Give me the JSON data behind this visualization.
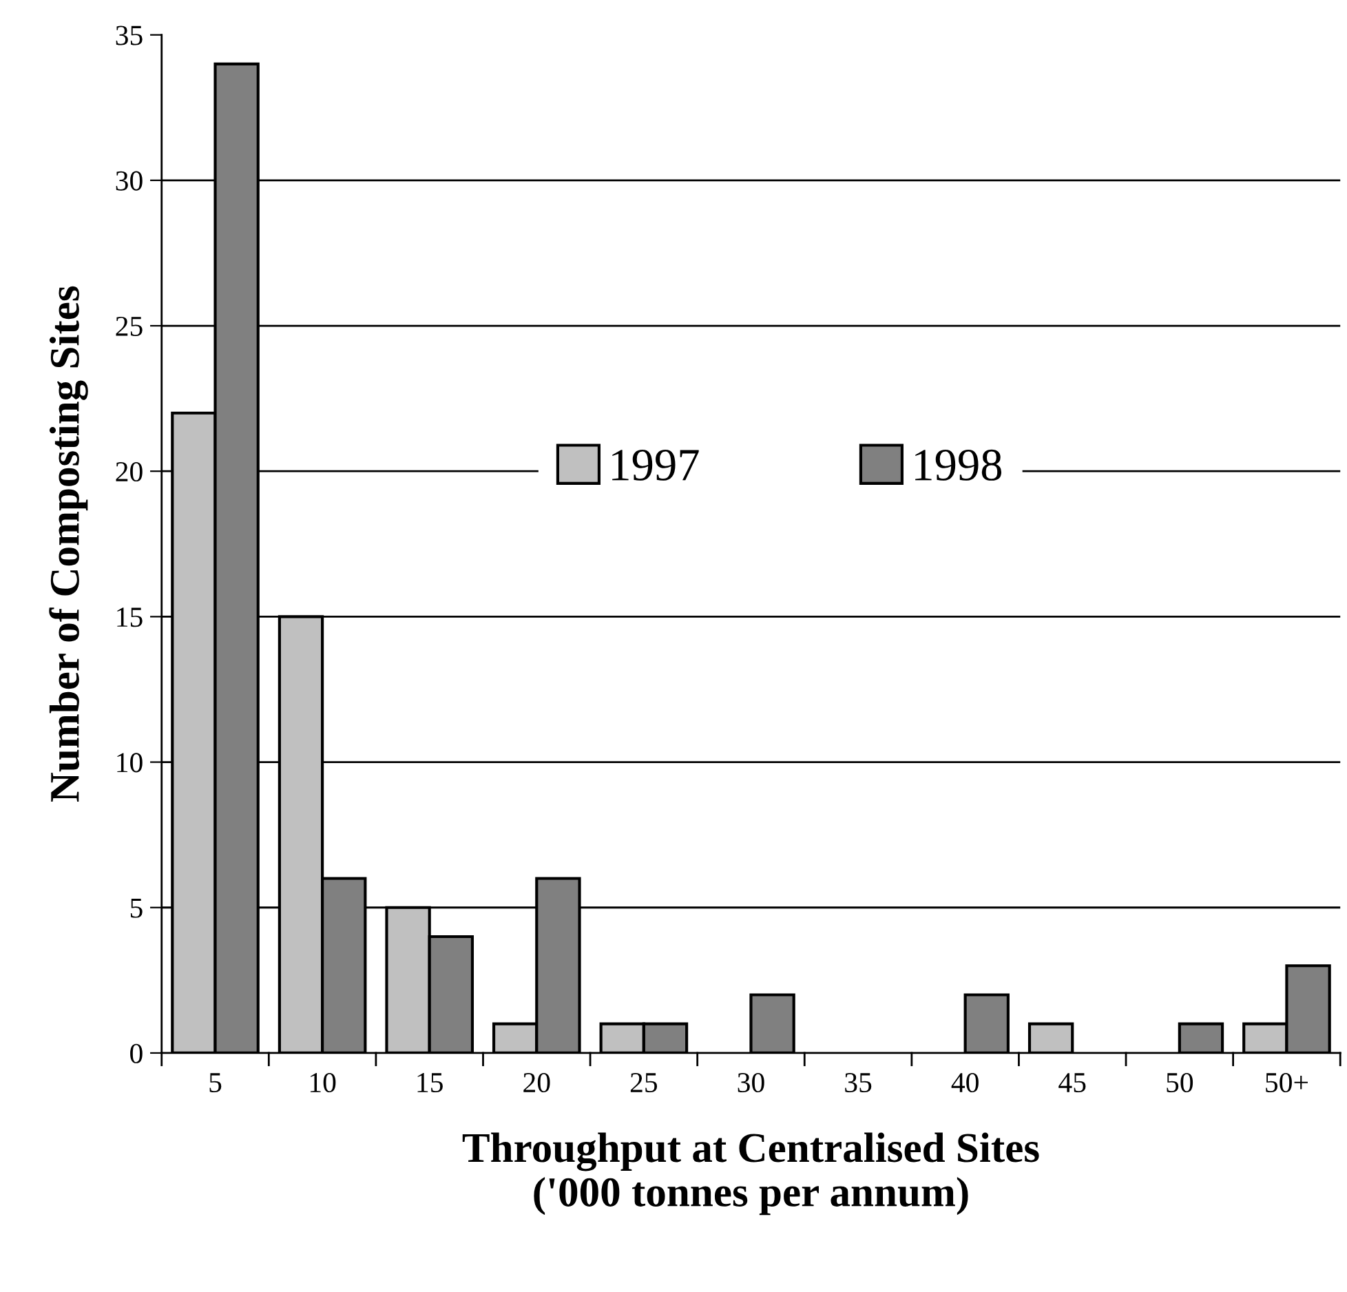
{
  "chart_data": {
    "type": "bar",
    "xlabel": "Throughput at Centralised Sites\n('000 tonnes per annum)",
    "ylabel": "Number of Composting Sites",
    "categories": [
      "5",
      "10",
      "15",
      "20",
      "25",
      "30",
      "35",
      "40",
      "45",
      "50",
      "50+"
    ],
    "series": [
      {
        "name": "1997",
        "color": "#c0c0c0",
        "values": [
          22,
          15,
          5,
          1,
          1,
          0,
          0,
          0,
          1,
          0,
          1
        ]
      },
      {
        "name": "1998",
        "color": "#808080",
        "values": [
          34,
          6,
          4,
          6,
          1,
          2,
          0,
          2,
          0,
          1,
          3
        ]
      }
    ],
    "ylim": [
      0,
      35
    ],
    "yticks": [
      0,
      5,
      10,
      15,
      20,
      25,
      30,
      35
    ],
    "grid": "y",
    "legend": "center"
  }
}
